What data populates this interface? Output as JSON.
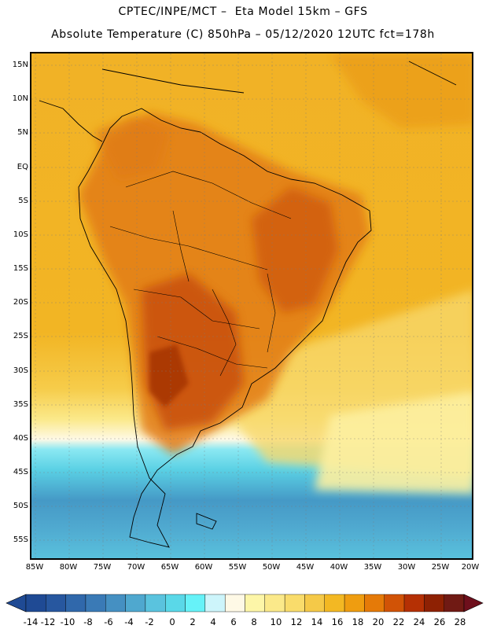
{
  "header": {
    "title_line1": "CPTEC/INPE/MCT –  Eta Model 15km – GFS",
    "title_line2": "Absolute Temperature (C) 850hPa – 05/12/2020 12UTC fct=178h"
  },
  "map": {
    "lat_labels": [
      "15N",
      "10N",
      "5N",
      "EQ",
      "5S",
      "10S",
      "15S",
      "20S",
      "25S",
      "30S",
      "35S",
      "40S",
      "45S",
      "50S",
      "55S"
    ],
    "lon_labels": [
      "85W",
      "80W",
      "75W",
      "70W",
      "65W",
      "60W",
      "55W",
      "50W",
      "45W",
      "40W",
      "35W",
      "30W",
      "25W",
      "20W"
    ]
  },
  "colorbar": {
    "labels": [
      "-14",
      "-12",
      "-10",
      "-8",
      "-6",
      "-4",
      "-2",
      "0",
      "2",
      "4",
      "6",
      "8",
      "10",
      "12",
      "14",
      "16",
      "18",
      "20",
      "22",
      "24",
      "26",
      "28"
    ],
    "colors": [
      "#1f4a94",
      "#27579f",
      "#3068ab",
      "#3a7ab6",
      "#4590c2",
      "#4fa8cf",
      "#5ac3de",
      "#5ad8e8",
      "#66f2f8",
      "#cdf5fb",
      "#fef9e6",
      "#fdf6a8",
      "#fbe98a",
      "#f9dc6b",
      "#f5c948",
      "#f3b823",
      "#ef9d10",
      "#e57a08",
      "#d15306",
      "#b53004",
      "#8e2103",
      "#701a14"
    ]
  }
}
